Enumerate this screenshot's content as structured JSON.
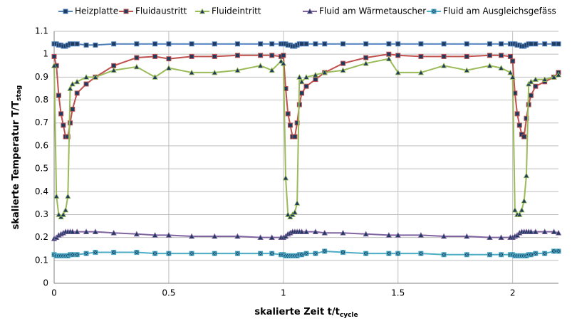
{
  "chart_data": {
    "type": "line",
    "xlabel": "skalierte Zeit t/t",
    "xlabel_sub": "cycle",
    "ylabel": "skalierte Temperatur T/T",
    "ylabel_sub": "stag",
    "xlim": [
      0,
      2.2
    ],
    "xticks": [
      0,
      0.5,
      1,
      1.5,
      2
    ],
    "ylim": [
      0,
      1.1
    ],
    "yticks": [
      0,
      0.1,
      0.2,
      0.3,
      0.4,
      0.5,
      0.6,
      0.7,
      0.8,
      0.9,
      1,
      1.1
    ],
    "grid": true,
    "legend": "top",
    "x": [
      0,
      0.01,
      0.02,
      0.03,
      0.04,
      0.05,
      0.06,
      0.07,
      0.08,
      0.1,
      0.14,
      0.18,
      0.26,
      0.36,
      0.44,
      0.5,
      0.6,
      0.7,
      0.8,
      0.9,
      0.95,
      0.99,
      1,
      1.01,
      1.02,
      1.03,
      1.04,
      1.05,
      1.06,
      1.07,
      1.08,
      1.1,
      1.14,
      1.18,
      1.26,
      1.36,
      1.46,
      1.5,
      1.6,
      1.7,
      1.8,
      1.9,
      1.95,
      1.99,
      2,
      2.01,
      2.02,
      2.03,
      2.04,
      2.05,
      2.06,
      2.07,
      2.08,
      2.1,
      2.14,
      2.18,
      2.2
    ],
    "series": [
      {
        "name": "Heizplatte",
        "color": "#4f81bd",
        "marker": "square",
        "values": [
          1.045,
          1.045,
          1.04,
          1.04,
          1.035,
          1.035,
          1.04,
          1.045,
          1.045,
          1.045,
          1.04,
          1.04,
          1.045,
          1.045,
          1.045,
          1.045,
          1.045,
          1.045,
          1.045,
          1.045,
          1.045,
          1.045,
          1.045,
          1.045,
          1.04,
          1.04,
          1.035,
          1.035,
          1.04,
          1.045,
          1.045,
          1.045,
          1.045,
          1.045,
          1.045,
          1.045,
          1.045,
          1.045,
          1.045,
          1.045,
          1.045,
          1.045,
          1.045,
          1.045,
          1.045,
          1.045,
          1.04,
          1.04,
          1.035,
          1.035,
          1.04,
          1.045,
          1.045,
          1.045,
          1.045,
          1.045,
          1.045
        ]
      },
      {
        "name": "Fluidaustritt",
        "color": "#c0504d",
        "marker": "square",
        "values": [
          0.99,
          0.95,
          0.82,
          0.74,
          0.69,
          0.64,
          0.64,
          0.7,
          0.76,
          0.83,
          0.87,
          0.9,
          0.95,
          0.985,
          0.99,
          0.98,
          0.99,
          0.99,
          0.995,
          0.995,
          0.995,
          0.99,
          0.995,
          0.85,
          0.74,
          0.69,
          0.64,
          0.64,
          0.7,
          0.78,
          0.83,
          0.86,
          0.89,
          0.92,
          0.96,
          0.985,
          1.0,
          0.995,
          0.99,
          0.99,
          0.99,
          0.995,
          0.995,
          0.99,
          0.97,
          0.83,
          0.74,
          0.69,
          0.65,
          0.64,
          0.72,
          0.78,
          0.82,
          0.86,
          0.88,
          0.9,
          0.92
        ]
      },
      {
        "name": "Fluideintritt",
        "color": "#9bbb59",
        "marker": "triangle",
        "values": [
          0.95,
          0.38,
          0.3,
          0.29,
          0.3,
          0.32,
          0.38,
          0.85,
          0.87,
          0.88,
          0.9,
          0.9,
          0.93,
          0.945,
          0.9,
          0.94,
          0.92,
          0.92,
          0.93,
          0.95,
          0.93,
          0.97,
          0.96,
          0.46,
          0.3,
          0.29,
          0.3,
          0.31,
          0.35,
          0.9,
          0.88,
          0.9,
          0.91,
          0.92,
          0.93,
          0.96,
          0.98,
          0.92,
          0.92,
          0.95,
          0.93,
          0.95,
          0.94,
          0.92,
          0.9,
          0.32,
          0.3,
          0.3,
          0.32,
          0.36,
          0.47,
          0.87,
          0.88,
          0.89,
          0.89,
          0.9,
          0.91
        ]
      },
      {
        "name": "Fluid am Wärmetauscher",
        "color": "#8064a2",
        "marker": "triangle",
        "values": [
          0.195,
          0.2,
          0.21,
          0.215,
          0.22,
          0.225,
          0.225,
          0.225,
          0.225,
          0.225,
          0.225,
          0.225,
          0.22,
          0.215,
          0.21,
          0.21,
          0.205,
          0.205,
          0.205,
          0.2,
          0.2,
          0.2,
          0.2,
          0.205,
          0.215,
          0.22,
          0.225,
          0.225,
          0.225,
          0.225,
          0.225,
          0.225,
          0.225,
          0.22,
          0.22,
          0.215,
          0.21,
          0.21,
          0.21,
          0.205,
          0.205,
          0.2,
          0.2,
          0.2,
          0.2,
          0.205,
          0.21,
          0.22,
          0.225,
          0.225,
          0.225,
          0.225,
          0.225,
          0.225,
          0.225,
          0.225,
          0.22
        ]
      },
      {
        "name": "Fluid am Ausgleichsgefäss",
        "color": "#4bacc6",
        "marker": "x",
        "values": [
          0.125,
          0.12,
          0.12,
          0.12,
          0.12,
          0.12,
          0.12,
          0.125,
          0.125,
          0.125,
          0.13,
          0.135,
          0.135,
          0.135,
          0.13,
          0.13,
          0.13,
          0.13,
          0.13,
          0.13,
          0.13,
          0.125,
          0.125,
          0.12,
          0.12,
          0.12,
          0.12,
          0.12,
          0.12,
          0.125,
          0.125,
          0.13,
          0.13,
          0.14,
          0.135,
          0.13,
          0.13,
          0.13,
          0.13,
          0.125,
          0.125,
          0.125,
          0.125,
          0.125,
          0.125,
          0.12,
          0.12,
          0.12,
          0.12,
          0.12,
          0.12,
          0.125,
          0.125,
          0.13,
          0.13,
          0.14,
          0.14
        ]
      }
    ]
  }
}
